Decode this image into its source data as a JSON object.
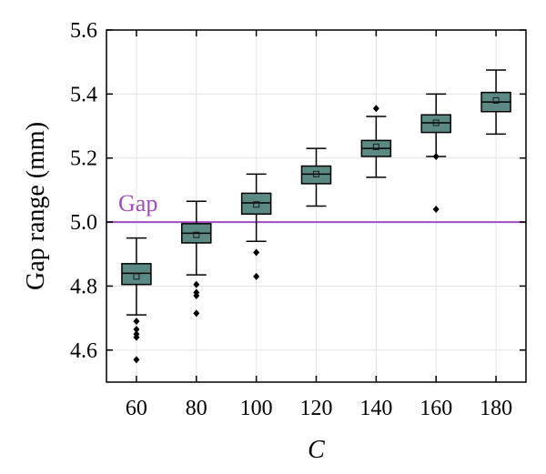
{
  "chart_data": {
    "type": "box",
    "xlabel": "C",
    "ylabel": "Gap range (mm)",
    "categories": [
      "60",
      "80",
      "100",
      "120",
      "140",
      "160",
      "180"
    ],
    "ylim": [
      4.5,
      5.6
    ],
    "yticks": [
      "4.6",
      "4.8",
      "5.0",
      "5.2",
      "5.4",
      "5.6"
    ],
    "grid": true,
    "box_color": "#5b8a84",
    "reference_line": {
      "label": "Gap",
      "value": 5.0,
      "color": "#a04cbf"
    },
    "boxes": [
      {
        "category": "60",
        "whisker_low": 4.71,
        "q1": 4.805,
        "median": 4.84,
        "q3": 4.87,
        "whisker_high": 4.95,
        "mean": 4.83,
        "outliers": [
          4.69,
          4.665,
          4.65,
          4.64,
          4.57
        ]
      },
      {
        "category": "80",
        "whisker_low": 4.835,
        "q1": 4.935,
        "median": 4.965,
        "q3": 4.995,
        "whisker_high": 5.065,
        "mean": 4.96,
        "outliers": [
          4.805,
          4.78,
          4.77,
          4.715
        ]
      },
      {
        "category": "100",
        "whisker_low": 4.94,
        "q1": 5.025,
        "median": 5.06,
        "q3": 5.09,
        "whisker_high": 5.15,
        "mean": 5.055,
        "outliers": [
          4.905,
          4.83
        ]
      },
      {
        "category": "120",
        "whisker_low": 5.05,
        "q1": 5.12,
        "median": 5.15,
        "q3": 5.175,
        "whisker_high": 5.23,
        "mean": 5.15,
        "outliers": []
      },
      {
        "category": "140",
        "whisker_low": 5.14,
        "q1": 5.205,
        "median": 5.23,
        "q3": 5.255,
        "whisker_high": 5.33,
        "mean": 5.235,
        "outliers": [
          5.355
        ]
      },
      {
        "category": "160",
        "whisker_low": 5.205,
        "q1": 5.28,
        "median": 5.31,
        "q3": 5.335,
        "whisker_high": 5.4,
        "mean": 5.31,
        "outliers": [
          5.205,
          5.04
        ]
      },
      {
        "category": "180",
        "whisker_low": 5.275,
        "q1": 5.345,
        "median": 5.375,
        "q3": 5.405,
        "whisker_high": 5.475,
        "mean": 5.38,
        "outliers": []
      }
    ]
  }
}
